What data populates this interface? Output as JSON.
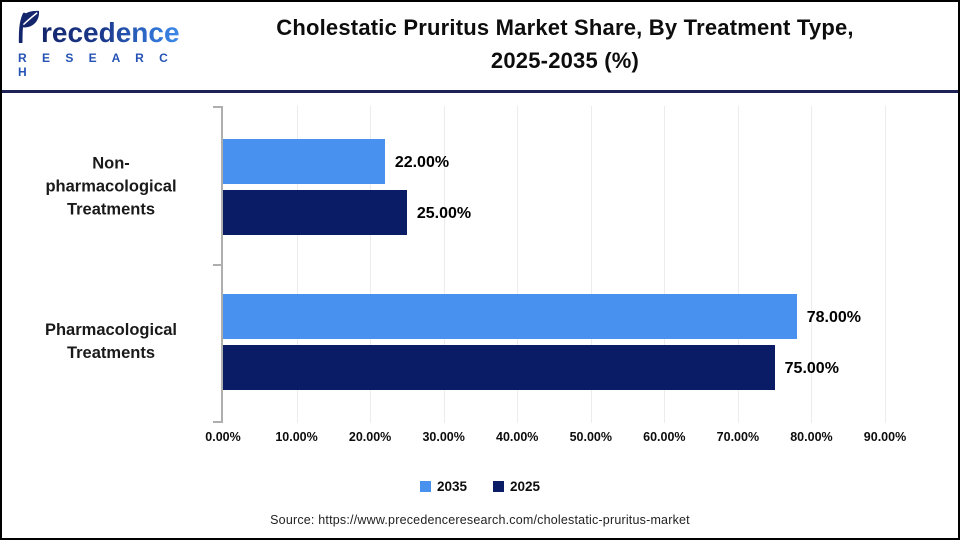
{
  "header": {
    "logo": {
      "brand": "recedence",
      "brand_full": "Precedence",
      "sub": "R E S E A R C H"
    },
    "title_line1": "Cholestatic Pruritus Market Share, By Treatment Type,",
    "title_line2": "2025-2035 (%)"
  },
  "chart_data": {
    "type": "bar",
    "orientation": "horizontal",
    "title": "Cholestatic Pruritus Market Share, By Treatment Type, 2025-2035 (%)",
    "categories": [
      "Non-pharmacological Treatments",
      "Pharmacological Treatments"
    ],
    "category_lines": [
      [
        "Non-",
        "pharmacological",
        "Treatments"
      ],
      [
        "Pharmacological",
        "Treatments"
      ]
    ],
    "series": [
      {
        "name": "2035",
        "color": "#4991ee",
        "values": [
          22,
          78
        ],
        "labels": [
          "22.00%",
          "78.00%"
        ]
      },
      {
        "name": "2025",
        "color": "#0a1c66",
        "values": [
          25,
          75
        ],
        "labels": [
          "25.00%",
          "75.00%"
        ]
      }
    ],
    "x_ticks": [
      "0.00%",
      "10.00%",
      "20.00%",
      "30.00%",
      "40.00%",
      "50.00%",
      "60.00%",
      "70.00%",
      "80.00%",
      "90.00%"
    ],
    "xlim": [
      0,
      90
    ],
    "grid": true,
    "legend_position": "bottom"
  },
  "footer": {
    "source": "Source: https://www.precedenceresearch.com/cholestatic-pruritus-market"
  },
  "colors": {
    "series_2035": "#4991ee",
    "series_2025": "#0a1c66",
    "header_divider": "#1d2155",
    "axis": "#aeaeae",
    "gridline": "#ececec",
    "frame_border": "#000000"
  }
}
